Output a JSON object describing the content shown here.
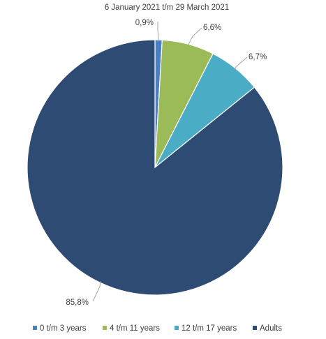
{
  "chart_data": {
    "type": "pie",
    "title": "6 January 2021 t/m 29 March 2021",
    "slices": [
      {
        "label": "0 t/m 3 years",
        "value": 0.9,
        "display": "0,9%",
        "color": "#4a7fc1"
      },
      {
        "label": "4 t/m 11 years",
        "value": 6.6,
        "display": "6,6%",
        "color": "#9bbb59"
      },
      {
        "label": "12 t/m 17 years",
        "value": 6.7,
        "display": "6,7%",
        "color": "#4bacc6"
      },
      {
        "label": "Adults",
        "value": 85.8,
        "display": "85,8%",
        "color": "#2e4b73"
      }
    ],
    "legend_position": "bottom",
    "start_angle": "12 o'clock",
    "direction": "clockwise"
  }
}
